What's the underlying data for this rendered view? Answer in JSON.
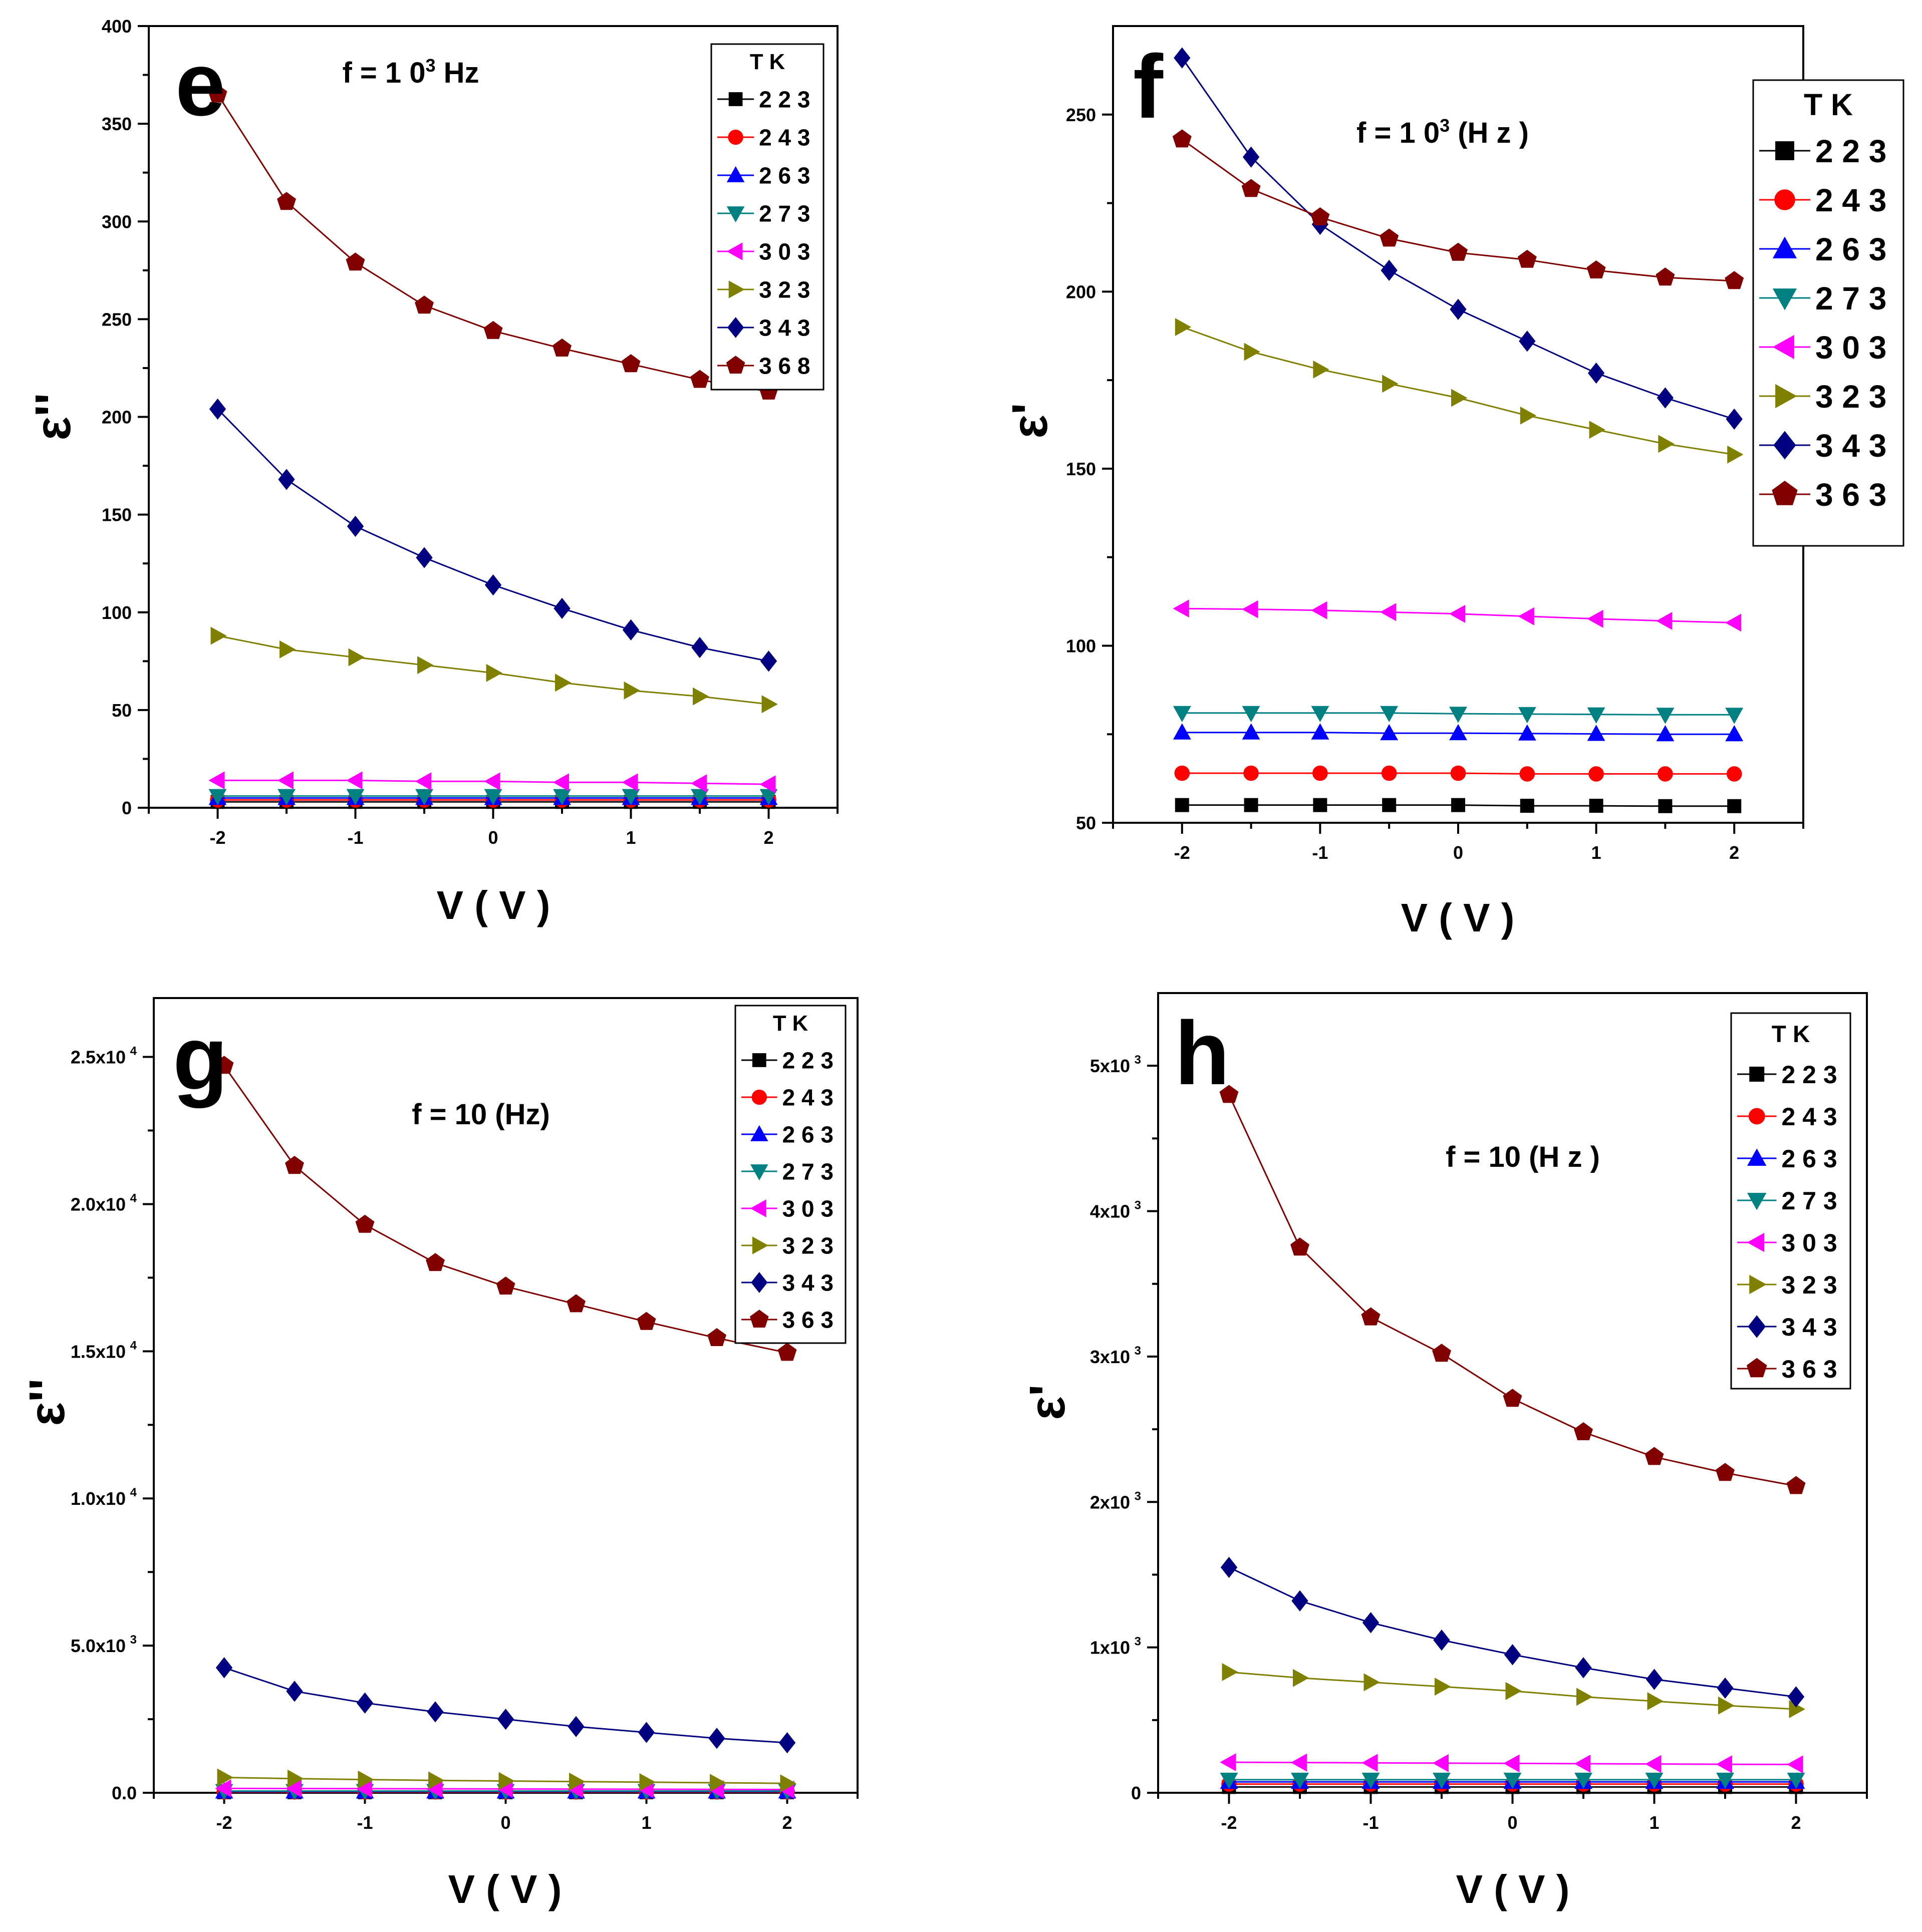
{
  "figure_title": "",
  "chart_data": [
    {
      "panel_label": "e",
      "type": "line",
      "annotation": "f = 1 0",
      "annotation_sup": "3",
      "annotation_tail": " Hz",
      "xlabel": "V ( V )",
      "ylabel": "ε''",
      "xlim": [
        -2.5,
        2.5
      ],
      "ylim": [
        0,
        400
      ],
      "x_ticks": [
        -2,
        -1,
        0,
        1,
        2
      ],
      "y_ticks": [
        0,
        50,
        100,
        150,
        200,
        250,
        300,
        350,
        400
      ],
      "y_tick_labels": [
        "0",
        "50",
        "100",
        "150",
        "200",
        "250",
        "300",
        "350",
        "400"
      ],
      "legend_title": "T K",
      "legend_position": "top-right",
      "x": [
        -2,
        -1.5,
        -1,
        -0.5,
        0,
        0.5,
        1,
        1.5,
        2
      ],
      "series": [
        {
          "name": "2 2 3",
          "color": "#000000",
          "marker": "square",
          "values": [
            3,
            3,
            3,
            3,
            3,
            3,
            3,
            3,
            3
          ]
        },
        {
          "name": "2 4 3",
          "color": "#ff0000",
          "marker": "circle",
          "values": [
            4,
            4,
            4,
            4,
            4,
            4,
            4,
            4,
            4
          ]
        },
        {
          "name": "2 6 3",
          "color": "#0000ff",
          "marker": "triangle-up",
          "values": [
            5,
            5,
            5,
            5,
            5,
            5,
            5,
            5,
            5
          ]
        },
        {
          "name": "2 7 3",
          "color": "#008080",
          "marker": "triangle-down",
          "values": [
            6,
            6,
            6,
            6,
            6,
            6,
            6,
            6,
            6
          ]
        },
        {
          "name": "3 0 3",
          "color": "#ff00ff",
          "marker": "triangle-left",
          "values": [
            14,
            14,
            14,
            13.5,
            13.5,
            13,
            13,
            12.5,
            12
          ]
        },
        {
          "name": "3 2 3",
          "color": "#808000",
          "marker": "triangle-right",
          "values": [
            88,
            81,
            77,
            73,
            69,
            64,
            60,
            57,
            53
          ]
        },
        {
          "name": "3 4 3",
          "color": "#000080",
          "marker": "diamond",
          "values": [
            204,
            168,
            144,
            128,
            114,
            102,
            91,
            82,
            75
          ]
        },
        {
          "name": "3 6 8",
          "color": "#800000",
          "marker": "pentagon",
          "values": [
            365,
            310,
            279,
            257,
            244,
            235,
            227,
            219,
            213
          ]
        }
      ]
    },
    {
      "panel_label": "f",
      "type": "line",
      "annotation": "f = 1 0",
      "annotation_sup": "3",
      "annotation_tail": " (H z )",
      "xlabel": "V ( V )",
      "ylabel": "ε'",
      "xlim": [
        -2.5,
        2.5
      ],
      "ylim": [
        50,
        275
      ],
      "x_ticks": [
        -2,
        -1,
        0,
        1,
        2
      ],
      "y_ticks": [
        50,
        100,
        150,
        200,
        250
      ],
      "y_tick_labels": [
        "50",
        "100",
        "150",
        "200",
        "250"
      ],
      "legend_title": "T K",
      "legend_position": "top-right",
      "x": [
        -2,
        -1.5,
        -1,
        -0.5,
        0,
        0.5,
        1,
        1.5,
        2
      ],
      "series": [
        {
          "name": "2 2 3",
          "color": "#000000",
          "marker": "square",
          "values": [
            55,
            55,
            55,
            55,
            55,
            54.8,
            54.8,
            54.7,
            54.7
          ]
        },
        {
          "name": "2 4 3",
          "color": "#ff0000",
          "marker": "circle",
          "values": [
            64,
            64,
            64,
            64,
            64,
            63.8,
            63.8,
            63.8,
            63.8
          ]
        },
        {
          "name": "2 6 3",
          "color": "#0000ff",
          "marker": "triangle-up",
          "values": [
            75.5,
            75.5,
            75.5,
            75.3,
            75.3,
            75.2,
            75.1,
            75,
            75
          ]
        },
        {
          "name": "2 7 3",
          "color": "#008080",
          "marker": "triangle-down",
          "values": [
            81,
            81,
            81,
            81,
            80.8,
            80.7,
            80.6,
            80.5,
            80.5
          ]
        },
        {
          "name": "3 0 3",
          "color": "#ff00ff",
          "marker": "triangle-left",
          "values": [
            110.5,
            110.3,
            110,
            109.5,
            109,
            108.3,
            107.6,
            107,
            106.5
          ]
        },
        {
          "name": "3 2 3",
          "color": "#808000",
          "marker": "triangle-right",
          "values": [
            190,
            183,
            178,
            174,
            170,
            165,
            161,
            157,
            154
          ]
        },
        {
          "name": "3 4 3",
          "color": "#000080",
          "marker": "diamond",
          "values": [
            266,
            238,
            219,
            206,
            195,
            186,
            177,
            170,
            164
          ]
        },
        {
          "name": "3 6 3",
          "color": "#800000",
          "marker": "pentagon",
          "values": [
            243,
            229,
            221,
            215,
            211,
            209,
            206,
            204,
            203
          ]
        }
      ]
    },
    {
      "panel_label": "g",
      "type": "line",
      "annotation": "f = 10 (Hz)",
      "annotation_sup": "",
      "annotation_tail": "",
      "xlabel": "V ( V )",
      "ylabel": "ε''",
      "xlim": [
        -2.5,
        2.5
      ],
      "ylim": [
        0,
        27000
      ],
      "x_ticks": [
        -2,
        -1,
        0,
        1,
        2
      ],
      "y_ticks": [
        0,
        5000,
        10000,
        15000,
        20000,
        25000
      ],
      "y_tick_labels": [
        "0.0",
        "5.0x10",
        "1.0x10",
        "1.5x10",
        "2.0x10",
        "2.5x10"
      ],
      "y_tick_exps": [
        "",
        "3",
        "4",
        "4",
        "4",
        "4"
      ],
      "legend_title": "T K",
      "legend_position": "top-right",
      "x": [
        -2,
        -1.5,
        -1,
        -0.5,
        0,
        0.5,
        1,
        1.5,
        2
      ],
      "series": [
        {
          "name": "2 2 3",
          "color": "#000000",
          "marker": "square",
          "values": [
            20,
            20,
            20,
            20,
            20,
            20,
            20,
            20,
            20
          ]
        },
        {
          "name": "2 4 3",
          "color": "#ff0000",
          "marker": "circle",
          "values": [
            30,
            30,
            30,
            30,
            30,
            30,
            30,
            30,
            30
          ]
        },
        {
          "name": "2 6 3",
          "color": "#0000ff",
          "marker": "triangle-up",
          "values": [
            45,
            45,
            45,
            45,
            45,
            45,
            45,
            45,
            45
          ]
        },
        {
          "name": "2 7 3",
          "color": "#008080",
          "marker": "triangle-down",
          "values": [
            60,
            60,
            60,
            60,
            60,
            60,
            60,
            60,
            60
          ]
        },
        {
          "name": "3 0 3",
          "color": "#ff00ff",
          "marker": "triangle-left",
          "values": [
            150,
            145,
            140,
            135,
            130,
            125,
            120,
            115,
            110
          ]
        },
        {
          "name": "3 2 3",
          "color": "#808000",
          "marker": "triangle-right",
          "values": [
            520,
            480,
            450,
            420,
            400,
            380,
            360,
            340,
            320
          ]
        },
        {
          "name": "3 4 3",
          "color": "#000080",
          "marker": "diamond",
          "values": [
            4250,
            3450,
            3050,
            2750,
            2500,
            2250,
            2050,
            1850,
            1700
          ]
        },
        {
          "name": "3 6 3",
          "color": "#800000",
          "marker": "pentagon",
          "values": [
            24700,
            21300,
            19300,
            18000,
            17200,
            16600,
            16000,
            15450,
            14950
          ]
        }
      ]
    },
    {
      "panel_label": "h",
      "type": "line",
      "annotation": "f = 10 (H z )",
      "annotation_sup": "",
      "annotation_tail": "",
      "xlabel": "V ( V )",
      "ylabel": "ε'",
      "xlim": [
        -2.5,
        2.5
      ],
      "ylim": [
        0,
        5500
      ],
      "x_ticks": [
        -2,
        -1,
        0,
        1,
        2
      ],
      "y_ticks": [
        0,
        1000,
        2000,
        3000,
        4000,
        5000
      ],
      "y_tick_labels": [
        "0",
        "1x10",
        "2x10",
        "3x10",
        "4x10",
        "5x10"
      ],
      "y_tick_exps": [
        "",
        "3",
        "3",
        "3",
        "3",
        "3"
      ],
      "legend_title": "T K",
      "legend_position": "top-right",
      "x": [
        -2,
        -1.5,
        -1,
        -0.5,
        0,
        0.5,
        1,
        1.5,
        2
      ],
      "series": [
        {
          "name": "2 2 3",
          "color": "#000000",
          "marker": "square",
          "values": [
            40,
            40,
            40,
            40,
            40,
            40,
            40,
            40,
            40
          ]
        },
        {
          "name": "2 4 3",
          "color": "#ff0000",
          "marker": "circle",
          "values": [
            60,
            60,
            60,
            60,
            60,
            60,
            60,
            60,
            60
          ]
        },
        {
          "name": "2 6 3",
          "color": "#0000ff",
          "marker": "triangle-up",
          "values": [
            75,
            75,
            75,
            75,
            75,
            75,
            75,
            75,
            75
          ]
        },
        {
          "name": "2 7 3",
          "color": "#008080",
          "marker": "triangle-down",
          "values": [
            90,
            90,
            90,
            90,
            90,
            90,
            90,
            90,
            90
          ]
        },
        {
          "name": "3 0 3",
          "color": "#ff00ff",
          "marker": "triangle-left",
          "values": [
            210,
            208,
            206,
            204,
            202,
            200,
            198,
            196,
            195
          ]
        },
        {
          "name": "3 2 3",
          "color": "#808000",
          "marker": "triangle-right",
          "values": [
            830,
            790,
            760,
            730,
            700,
            660,
            630,
            600,
            575
          ]
        },
        {
          "name": "3 4 3",
          "color": "#000080",
          "marker": "diamond",
          "values": [
            1550,
            1320,
            1170,
            1050,
            950,
            860,
            780,
            720,
            660
          ]
        },
        {
          "name": "3 6 3",
          "color": "#800000",
          "marker": "pentagon",
          "values": [
            4800,
            3750,
            3270,
            3020,
            2710,
            2480,
            2310,
            2200,
            2110
          ]
        }
      ]
    }
  ]
}
